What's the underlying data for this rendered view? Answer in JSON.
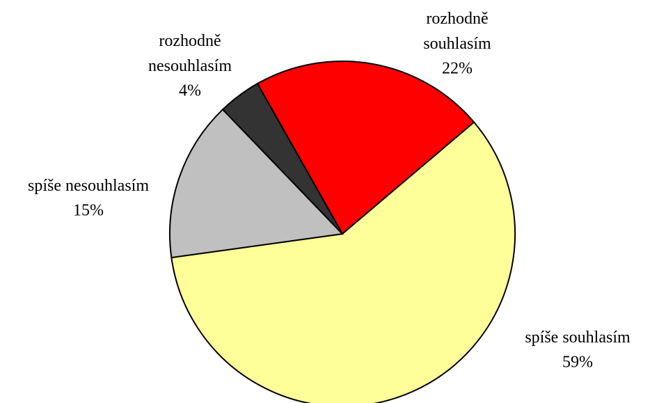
{
  "chart_data": {
    "type": "pie",
    "categories": [
      "rozhodně\nsouhlasím",
      "spíše souhlasím",
      "spíše nesouhlasím",
      "rozhodně\nnesouhlasím"
    ],
    "values": [
      22,
      59,
      15,
      4
    ],
    "value_labels": [
      "22%",
      "59%",
      "15%",
      "4%"
    ],
    "colors": [
      "#ff0000",
      "#ffff99",
      "#c0c0c0",
      "#333333"
    ]
  }
}
